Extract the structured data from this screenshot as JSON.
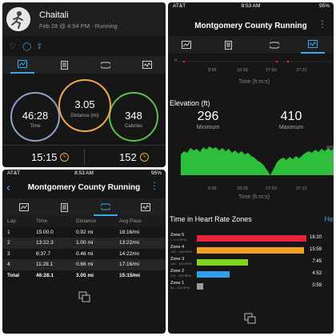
{
  "summary": {
    "user_name": "Chaitali",
    "date_line": "Feb 28 @ 4:54 PM · Running",
    "time_value": "46:28",
    "time_label": "Time",
    "distance_value": "3.05",
    "distance_label": "Distance (mi)",
    "calories_value": "348",
    "calories_label": "Calories",
    "duration_bottom": "15:15",
    "hr_bottom": "152",
    "colors": {
      "time_ring": "#8fa3c8",
      "distance_ring": "#f0a64e",
      "calories_ring": "#5ec24a",
      "accent": "#3ba6e8"
    }
  },
  "laps_screen": {
    "status": {
      "carrier": "AT&T",
      "time": "8:53 AM",
      "battery": "95%"
    },
    "title": "Montgomery County Running",
    "columns": [
      "Lap",
      "Time",
      "Distance",
      "Avg Pace"
    ],
    "rows": [
      [
        "1",
        "15:00.0",
        "0.92 mi",
        "16:16/mi"
      ],
      [
        "2",
        "13:22.3",
        "1.00 mi",
        "13:22/mi"
      ],
      [
        "3",
        "6:37.7",
        "0.46 mi",
        "14:22/mi"
      ],
      [
        "4",
        "11:28.1",
        "0.66 mi",
        "17:16/mi"
      ]
    ],
    "total": [
      "Total",
      "46:28.1",
      "3.05 mi",
      "15:15/mi"
    ]
  },
  "detail_screen": {
    "status": {
      "carrier": "AT&T",
      "time": "8:53 AM",
      "battery": "95%"
    },
    "title": "Montgomery County Running",
    "top_axis_zero": "0",
    "time_ticks": [
      "8:56",
      "18:28",
      "27:59",
      "37:31"
    ],
    "time_axis_label": "Time (h:m:s)",
    "elevation_title": "Elevation (ft)",
    "elev_min_value": "296",
    "elev_min_label": "Minimum",
    "elev_max_value": "410",
    "elev_max_label": "Maximum",
    "elev_ticks": [
      "400",
      "350",
      "300"
    ],
    "hr_zones_title": "Time in Heart Rate Zones",
    "hr_zones_link": "He",
    "zones": [
      {
        "name": "Zone 5",
        "range": "> 171 BPM",
        "time": "16:20",
        "color": "#e8213f",
        "fraction": 0.98
      },
      {
        "name": "Zone 4",
        "range": "153 - 169 BPM",
        "time": "15:59",
        "color": "#f0a124",
        "fraction": 0.96
      },
      {
        "name": "Zone 3",
        "range": "134 - 152 BPM",
        "time": "7:45",
        "color": "#7ed321",
        "fraction": 0.46
      },
      {
        "name": "Zone 2",
        "range": "115 - 133 BPM",
        "time": "4:53",
        "color": "#2fa0ea",
        "fraction": 0.29
      },
      {
        "name": "Zone 1",
        "range": "96 - 114 BPM",
        "time": "0:59",
        "color": "#9b9b9b",
        "fraction": 0.06
      }
    ]
  }
}
